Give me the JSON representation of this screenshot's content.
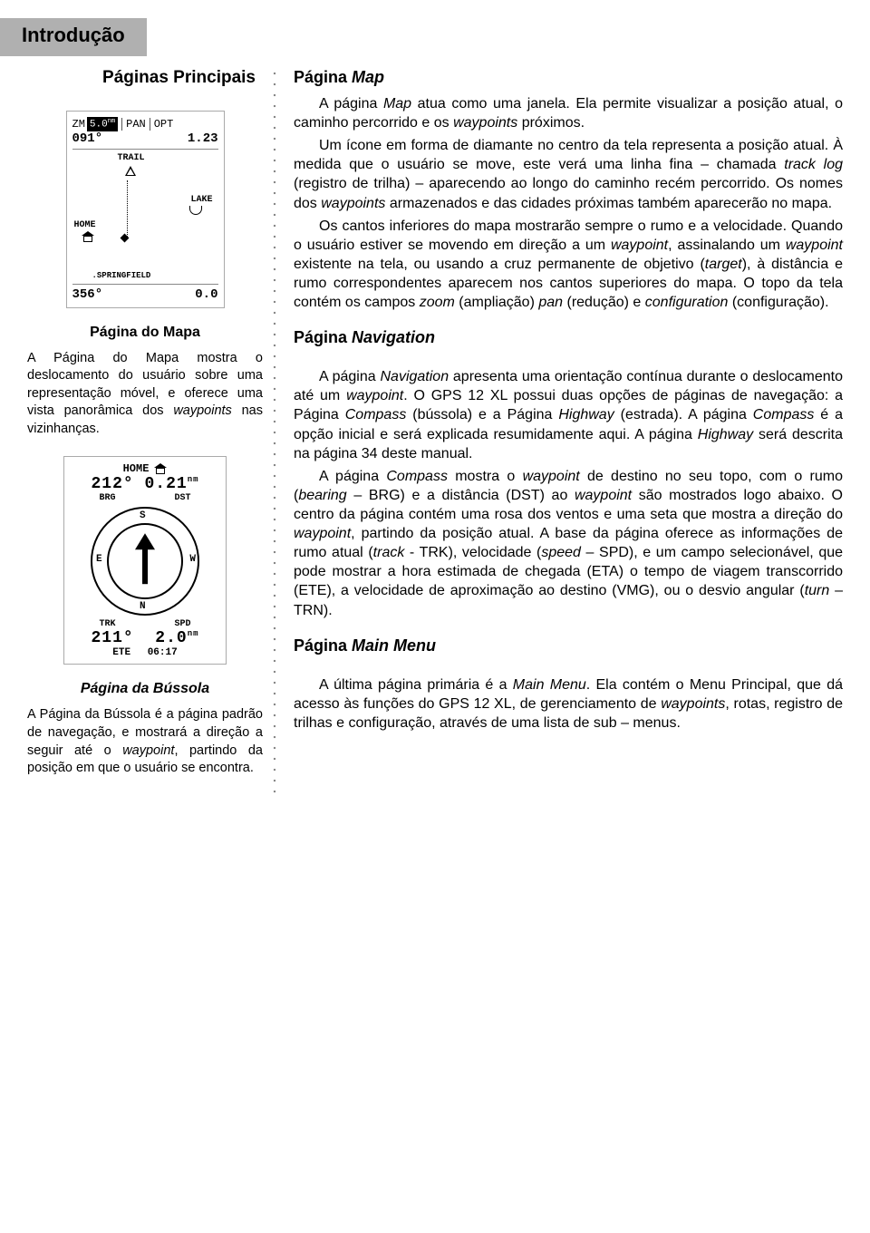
{
  "tab_title": "Introdução",
  "left": {
    "heading": "Páginas Principais",
    "map_caption": "Página do Mapa",
    "map_para_html": "A Página do Mapa mostra o deslocamento do usuário sobre uma representação móvel, e oferece uma vista panorâmica dos <em>waypoints</em> nas vizinhanças.",
    "compass_caption": "Página da Bússola",
    "compass_para_html": "A Página da Bússola é a página padrão de navegação, e mostrará a direção a seguir até o <em>waypoint</em>, partindo da posição em que o usuário se encontra."
  },
  "lcd_map": {
    "zm_label": "ZM",
    "zm_value": "5.0",
    "zm_unit": "nm",
    "pan": "PAN",
    "opt": "OPT",
    "heading": "091°",
    "dist": "1.23",
    "trail": "TRAIL",
    "lake": "LAKE",
    "home": "HOME",
    "city": "SPRINGFIELD",
    "bottom_heading": "356°",
    "bottom_speed": "0.0"
  },
  "lcd_compass": {
    "top_home": "HOME",
    "brg_val": "212°",
    "dst_val": "0.21",
    "dst_unit": "nm",
    "brg_lbl": "BRG",
    "dst_lbl": "DST",
    "n": "N",
    "s": "S",
    "e": "E",
    "w": "W",
    "trk_lbl": "TRK",
    "spd_lbl": "SPD",
    "trk_val": "211°",
    "spd_val": "2.0",
    "spd_unit": "nm",
    "ete_lbl": "ETE",
    "ete_val": "06:17"
  },
  "right": {
    "h1_html": "Página <em>Map</em>",
    "p1_html": "A página <em>Map</em> atua como uma janela. Ela permite visualizar a posição atual, o caminho percorrido e os <em>waypoints</em> próximos.",
    "p2_html": "Um ícone em forma de diamante no centro da tela representa a posição atual. À medida que o usuário se move, este verá uma linha fina – chamada <em>track log</em> (registro de trilha) – aparecendo ao longo do caminho recém percorrido. Os nomes dos <em>waypoints</em> armazenados e das cidades próximas também aparecerão no mapa.",
    "p3_html": "Os cantos inferiores do mapa mostrarão sempre o rumo e a velocidade. Quando o usuário estiver se movendo em direção a um <em>waypoint</em>, assinalando um <em>waypoint</em> existente na tela, ou usando a cruz permanente de objetivo (<em>target</em>), à distância e rumo correspondentes aparecem nos cantos superiores do mapa. O topo da tela contém os campos <em>zoom</em> (ampliação) <em>pan</em> (redução) e <em>configuration</em> (configuração).",
    "h2_html": "Página <em>Navigation</em>",
    "p4_html": "A página <em>Navigation</em> apresenta uma orientação contínua durante o deslocamento até um <em>waypoint</em>. O GPS 12 XL possui duas opções de páginas de navegação: a Página <em>Compass</em> (bússola) e a Página <em>Highway</em> (estrada). A página <em>Compass</em> é a opção inicial e será explicada resumidamente aqui. A página <em>Highway</em> será descrita na página 34 deste manual.",
    "p5_html": "A página <em>Compass</em> mostra o <em>waypoint</em> de destino no seu topo, com o rumo (<em>bearing</em> – BRG) e a distância (DST) ao <em>waypoint</em> são mostrados logo abaixo. O centro da página contém uma rosa dos ventos e uma seta que mostra a direção do <em>waypoint</em>, partindo da posição atual. A base da página oferece as informações de rumo atual (<em>track</em> - TRK), velocidade (<em>speed</em> – SPD), e um campo selecionável, que pode mostrar a hora estimada de chegada (ETA) o tempo de viagem transcorrido (ETE), a velocidade de aproximação ao destino (VMG), ou o desvio angular (<em>turn</em> – TRN).",
    "h3_html": "Página <em>Main Menu</em>",
    "p6_html": "A última página primária é a <em>Main Menu</em>. Ela contém o Menu Principal, que dá acesso às funções do GPS 12 XL, de gerenciamento de <em>waypoints</em>, rotas, registro de trilhas e configuração, através de uma lista de sub – menus."
  }
}
